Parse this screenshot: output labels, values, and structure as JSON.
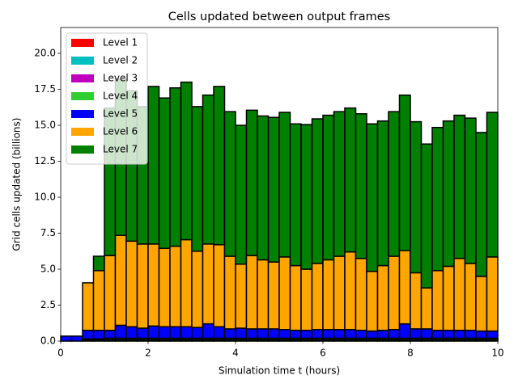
{
  "chart_data": {
    "type": "histogram",
    "stacked": true,
    "title": "Cells updated between output frames",
    "x_label": "Simulation time t (hours)",
    "y_label": "Grid cells updated (billions)",
    "bins": [
      0,
      0.25,
      0.5,
      0.75,
      1,
      1.25,
      1.5,
      1.75,
      2,
      2.25,
      2.5,
      2.75,
      3,
      3.25,
      3.5,
      3.75,
      4,
      4.25,
      4.5,
      4.75,
      5,
      5.25,
      5.5,
      5.75,
      6,
      6.25,
      6.5,
      6.75,
      7,
      7.25,
      7.5,
      7.75,
      8,
      8.25,
      8.5,
      8.75,
      9,
      9.25,
      9.5,
      9.75,
      10
    ],
    "series": [
      {
        "name": "Level 1",
        "color": "#ff0000",
        "values": [
          0,
          0,
          0.02,
          0.02,
          0.02,
          0.02,
          0.02,
          0.02,
          0.02,
          0.02,
          0.02,
          0.02,
          0.02,
          0.02,
          0.02,
          0.02,
          0.02,
          0.02,
          0.02,
          0.02,
          0.02,
          0.02,
          0.02,
          0.02,
          0.02,
          0.02,
          0.02,
          0.02,
          0.02,
          0.02,
          0.02,
          0.02,
          0.02,
          0.02,
          0.02,
          0.02,
          0.02,
          0.02,
          0.02,
          0.02
        ]
      },
      {
        "name": "Level 2",
        "color": "#00bfbf",
        "values": [
          0,
          0,
          0.03,
          0.03,
          0.03,
          0.03,
          0.03,
          0.03,
          0.03,
          0.03,
          0.03,
          0.03,
          0.03,
          0.03,
          0.03,
          0.03,
          0.03,
          0.03,
          0.03,
          0.03,
          0.03,
          0.03,
          0.03,
          0.03,
          0.03,
          0.03,
          0.03,
          0.03,
          0.03,
          0.03,
          0.03,
          0.03,
          0.03,
          0.03,
          0.03,
          0.03,
          0.03,
          0.03,
          0.03,
          0.03
        ]
      },
      {
        "name": "Level 3",
        "color": "#bf00bf",
        "values": [
          0,
          0,
          0.05,
          0.05,
          0.05,
          0.05,
          0.05,
          0.05,
          0.05,
          0.05,
          0.05,
          0.05,
          0.05,
          0.05,
          0.05,
          0.05,
          0.05,
          0.05,
          0.05,
          0.05,
          0.05,
          0.05,
          0.05,
          0.05,
          0.05,
          0.05,
          0.05,
          0.05,
          0.05,
          0.05,
          0.05,
          0.05,
          0.05,
          0.05,
          0.05,
          0.05,
          0.05,
          0.05,
          0.05,
          0.05
        ]
      },
      {
        "name": "Level 4",
        "color": "#32cd32",
        "values": [
          0,
          0,
          0.05,
          0.05,
          0.1,
          0.1,
          0.1,
          0.1,
          0.1,
          0.1,
          0.1,
          0.1,
          0.1,
          0.1,
          0.1,
          0.1,
          0.1,
          0.1,
          0.1,
          0.1,
          0.1,
          0.1,
          0.1,
          0.1,
          0.1,
          0.1,
          0.1,
          0.1,
          0.1,
          0.1,
          0.1,
          0.1,
          0.1,
          0.1,
          0.1,
          0.1,
          0.1,
          0.1,
          0.1,
          0.1
        ]
      },
      {
        "name": "Level 5",
        "color": "#0000ff",
        "values": [
          0.35,
          0.35,
          0.6,
          0.6,
          0.55,
          0.9,
          0.8,
          0.7,
          0.85,
          0.8,
          0.8,
          0.8,
          0.75,
          1.0,
          0.8,
          0.65,
          0.7,
          0.65,
          0.65,
          0.65,
          0.6,
          0.55,
          0.55,
          0.6,
          0.6,
          0.6,
          0.6,
          0.55,
          0.5,
          0.55,
          0.6,
          1.0,
          0.65,
          0.65,
          0.55,
          0.55,
          0.55,
          0.55,
          0.5,
          0.5
        ]
      },
      {
        "name": "Level 6",
        "color": "#ffa500",
        "values": [
          0,
          0,
          3.3,
          4.15,
          5.2,
          6.25,
          5.95,
          5.85,
          5.7,
          5.45,
          5.6,
          6.05,
          5.3,
          5.55,
          5.7,
          5.05,
          4.45,
          5.1,
          4.8,
          4.65,
          5.05,
          4.5,
          4.25,
          4.6,
          4.85,
          5.1,
          5.4,
          5.0,
          4.15,
          4.5,
          5.1,
          5.1,
          3.9,
          2.85,
          4.15,
          4.45,
          5.0,
          4.65,
          3.8,
          5.15
        ]
      },
      {
        "name": "Level 7",
        "color": "#008000",
        "values": [
          0,
          0,
          0,
          1.0,
          10.25,
          10.85,
          10.45,
          9.55,
          10.95,
          10.45,
          11.0,
          10.95,
          10.05,
          10.35,
          11.0,
          10.05,
          9.65,
          10.1,
          10.0,
          10.05,
          10.05,
          9.85,
          10.05,
          10.05,
          10.05,
          10.05,
          10.0,
          10.05,
          10.25,
          10.05,
          10.05,
          10.8,
          10.5,
          10.0,
          9.95,
          10.1,
          9.95,
          10.1,
          10.0,
          10.05
        ]
      }
    ],
    "xlim": [
      0,
      10
    ],
    "xticks": [
      0,
      2,
      4,
      6,
      8,
      10
    ],
    "ylim": [
      0,
      21.8
    ],
    "yticks": [
      {
        "value": 0,
        "label": "0.0"
      },
      2.5,
      {
        "value": 5,
        "label": "5.0"
      },
      7.5,
      {
        "value": 10,
        "label": "10.0"
      },
      12.5,
      {
        "value": 15,
        "label": "15.0"
      },
      17.5,
      {
        "value": 20,
        "label": "20.0"
      }
    ],
    "legend": "upper left",
    "grid": false,
    "edge_color": "#000000"
  }
}
